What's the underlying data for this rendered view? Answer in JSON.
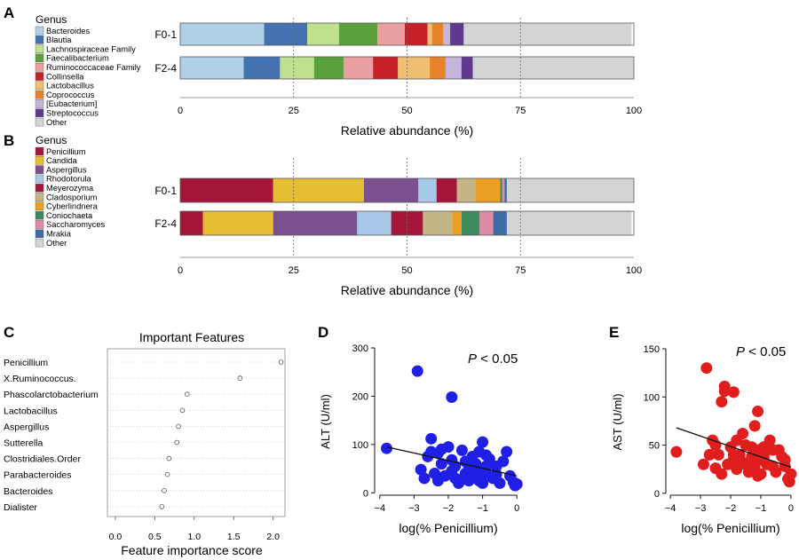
{
  "panel_letters": [
    "A",
    "B",
    "C",
    "D",
    "E"
  ],
  "chart_data": [
    {
      "panel": "A",
      "type": "bar",
      "orientation": "horizontal",
      "stacked": true,
      "legend_title": "Genus",
      "legend_placement": "left",
      "categories": [
        "F0-1",
        "F2-4"
      ],
      "xlabel": "Relative abundance (%)",
      "xlim": [
        0,
        100
      ],
      "xticks": [
        0,
        25,
        50,
        75,
        100
      ],
      "reference_lines": [
        25,
        50,
        75
      ],
      "series": [
        {
          "name": "Bacteroides",
          "color": "#b0d0e6",
          "values": [
            18.5,
            14
          ]
        },
        {
          "name": "Blautia",
          "color": "#4472b0",
          "values": [
            9.5,
            8
          ]
        },
        {
          "name": "Lachnospiraceae Family",
          "color": "#bfe08e",
          "values": [
            7,
            7.5
          ]
        },
        {
          "name": "Faecalibacterium",
          "color": "#5aa03c",
          "values": [
            8.5,
            6.5
          ]
        },
        {
          "name": "Ruminococcaceae Family",
          "color": "#eaa0a0",
          "values": [
            6,
            6.5
          ]
        },
        {
          "name": "Collinsella",
          "color": "#c62028",
          "values": [
            5,
            5.5
          ]
        },
        {
          "name": "Lactobacillus",
          "color": "#f0c070",
          "values": [
            1,
            7
          ]
        },
        {
          "name": "Coprococcus",
          "color": "#e88428",
          "values": [
            2.5,
            3.5
          ]
        },
        {
          "name": "[Eubacterium]",
          "color": "#c6b4da",
          "values": [
            1.5,
            3.5
          ]
        },
        {
          "name": "Streptococcus",
          "color": "#5e3a8e",
          "values": [
            3,
            2.5
          ]
        },
        {
          "name": "Other",
          "color": "#d4d4d4",
          "values": [
            37,
            35.5
          ]
        }
      ]
    },
    {
      "panel": "B",
      "type": "bar",
      "orientation": "horizontal",
      "stacked": true,
      "legend_title": "Genus",
      "legend_placement": "left",
      "categories": [
        "F0-1",
        "F2-4"
      ],
      "xlabel": "Relative abundance (%)",
      "xlim": [
        0,
        100
      ],
      "xticks": [
        0,
        25,
        50,
        75,
        100
      ],
      "reference_lines": [
        25,
        50,
        75
      ],
      "series": [
        {
          "name": "Penicillium",
          "color": "#a3163a",
          "values": [
            20.5,
            5
          ]
        },
        {
          "name": "Candida",
          "color": "#e6be32",
          "values": [
            20,
            15.5
          ]
        },
        {
          "name": "Aspergillus",
          "color": "#7b5090",
          "values": [
            12,
            18.5
          ]
        },
        {
          "name": "Rhodotorula",
          "color": "#a8c8ea",
          "values": [
            4,
            7.5
          ]
        },
        {
          "name": "Meyerozyma",
          "color": "#a3163a",
          "values": [
            4.5,
            7
          ]
        },
        {
          "name": "Cladosporium",
          "color": "#c4b486",
          "values": [
            4,
            6.5
          ]
        },
        {
          "name": "Cyberlindnera",
          "color": "#eba024",
          "values": [
            5.5,
            2
          ]
        },
        {
          "name": "Coniochaeta",
          "color": "#3f8a5c",
          "values": [
            0.5,
            4
          ]
        },
        {
          "name": "Saccharomyces",
          "color": "#de8aa8",
          "values": [
            0.5,
            3
          ]
        },
        {
          "name": "Mrakia",
          "color": "#3e6aa6",
          "values": [
            0.5,
            3
          ]
        },
        {
          "name": "Other",
          "color": "#d4d4d4",
          "values": [
            28,
            27.5
          ]
        }
      ]
    },
    {
      "panel": "C",
      "type": "scatter",
      "style": "dot plot",
      "title": "Important Features",
      "xlabel": "Feature importance score",
      "xlim": [
        -0.1,
        2.15
      ],
      "xticks": [
        0.0,
        0.5,
        1.0,
        1.5,
        2.0
      ],
      "xtick_labels": [
        "0.0",
        "0.5",
        "1.0",
        "1.5",
        "2.0"
      ],
      "categories": [
        "Penicillium",
        "X.Ruminococcus.",
        "Phascolarctobacterium",
        "Lactobacillus",
        "Aspergillus",
        "Sutterella",
        "Clostridiales.Order",
        "Parabacteroides",
        "Bacteroides",
        "Dialister"
      ],
      "values": [
        2.1,
        1.58,
        0.91,
        0.85,
        0.8,
        0.78,
        0.68,
        0.66,
        0.62,
        0.59
      ]
    },
    {
      "panel": "D",
      "type": "scatter",
      "annotation": "P < 0.05",
      "xlabel": "log(% Penicillium)",
      "ylabel": "ALT (U/ml)",
      "xlim": [
        -4.15,
        0.15
      ],
      "ylim": [
        -5,
        300
      ],
      "xticks": [
        -4,
        -3,
        -2,
        -1,
        0
      ],
      "yticks": [
        0,
        100,
        200,
        300
      ],
      "color": "#1f1fe6",
      "fit_line": {
        "x": [
          -3.8,
          0
        ],
        "y": [
          95,
          35
        ]
      },
      "x": [
        -3.8,
        -2.8,
        -2.9,
        -2.6,
        -2.5,
        -2.4,
        -2.3,
        -2.3,
        -2.2,
        -2.1,
        -2.0,
        -1.9,
        -1.9,
        -1.8,
        -1.8,
        -1.7,
        -1.6,
        -1.5,
        -1.5,
        -1.4,
        -1.3,
        -1.3,
        -1.2,
        -1.2,
        -1.1,
        -1.1,
        -1.0,
        -1.0,
        -0.9,
        -0.9,
        -0.8,
        -0.7,
        -0.6,
        -0.5,
        -0.4,
        -0.3,
        -0.2,
        -0.1,
        -0.05,
        0.0,
        -2.5,
        -1.6,
        -2.7,
        -0.9,
        -1.4,
        -1.9,
        -2.2,
        -0.6,
        -1.1
      ],
      "y": [
        92,
        48,
        252,
        75,
        112,
        40,
        82,
        25,
        60,
        35,
        95,
        198,
        45,
        30,
        55,
        20,
        88,
        40,
        65,
        25,
        75,
        50,
        35,
        60,
        45,
        85,
        105,
        20,
        55,
        40,
        70,
        30,
        55,
        20,
        65,
        85,
        35,
        22,
        15,
        18,
        85,
        28,
        30,
        78,
        55,
        68,
        90,
        38,
        25
      ]
    },
    {
      "panel": "E",
      "type": "scatter",
      "annotation": "P < 0.05",
      "xlabel": "log(% Penicillium)",
      "ylabel": "AST (U/ml)",
      "xlim": [
        -4.15,
        0.15
      ],
      "ylim": [
        -2,
        150
      ],
      "xticks": [
        -4,
        -3,
        -2,
        -1,
        0
      ],
      "yticks": [
        0,
        50,
        100,
        150
      ],
      "color": "#e01e1e",
      "fit_line": {
        "x": [
          -3.8,
          0
        ],
        "y": [
          68,
          27
        ]
      },
      "x": [
        -3.8,
        -2.8,
        -2.9,
        -2.6,
        -2.5,
        -2.4,
        -2.3,
        -2.3,
        -2.2,
        -2.1,
        -2.0,
        -1.9,
        -1.9,
        -1.8,
        -1.8,
        -1.7,
        -1.6,
        -1.5,
        -1.5,
        -1.4,
        -1.3,
        -1.3,
        -1.2,
        -1.2,
        -1.1,
        -1.1,
        -1.0,
        -1.0,
        -0.9,
        -0.9,
        -0.8,
        -0.7,
        -0.6,
        -0.5,
        -0.4,
        -0.3,
        -0.2,
        -0.1,
        -0.05,
        0.0,
        -2.5,
        -1.6,
        -2.7,
        -0.9,
        -1.4,
        -1.9,
        -2.2,
        -0.6,
        -1.1,
        -0.2
      ],
      "y": [
        43,
        130,
        30,
        55,
        26,
        40,
        95,
        20,
        111,
        30,
        48,
        105,
        35,
        25,
        55,
        40,
        62,
        30,
        50,
        22,
        38,
        48,
        70,
        28,
        45,
        85,
        35,
        20,
        48,
        40,
        30,
        55,
        28,
        22,
        45,
        38,
        28,
        15,
        12,
        20,
        50,
        32,
        40,
        38,
        28,
        40,
        106,
        45,
        18,
        35
      ]
    }
  ]
}
